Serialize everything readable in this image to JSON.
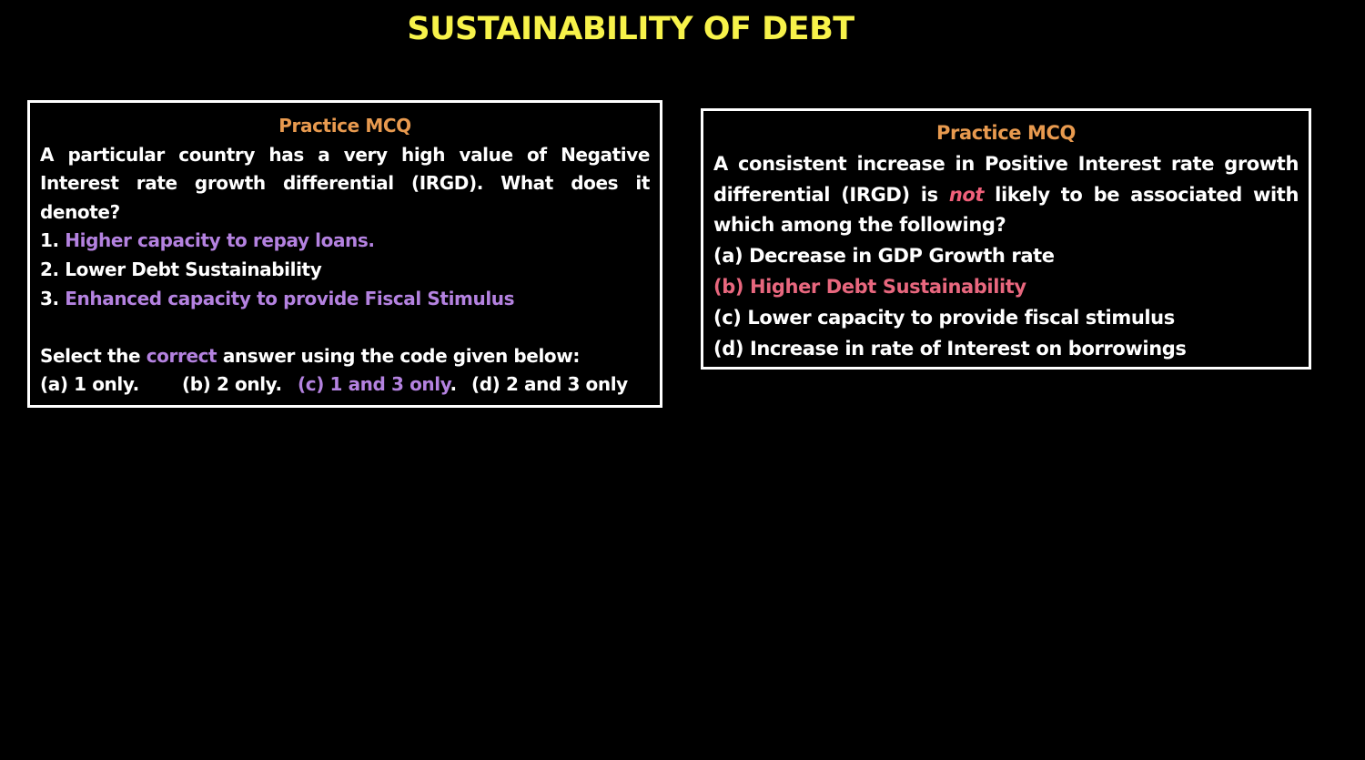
{
  "title": "SUSTAINABILITY OF DEBT",
  "left_card": {
    "heading": "Practice MCQ",
    "question": "A particular country has a very high value of Negative Interest rate growth differential (IRGD). What does it denote?",
    "statements": [
      {
        "number": "1.",
        "text": "Higher capacity to repay loans."
      },
      {
        "number": "2.",
        "text": "Lower Debt Sustainability"
      },
      {
        "number": "3.",
        "text": "Enhanced capacity to provide Fiscal Stimulus"
      }
    ],
    "instruction": {
      "before": "Select the",
      "highlight": "correct",
      "after": "answer using the code given below:"
    },
    "options": {
      "a": "(a) 1 only.",
      "b": "(b) 2 only.",
      "c": {
        "text": "(c) 1 and 3 only",
        "suffix": "."
      },
      "d": "(d) 2 and 3 only"
    }
  },
  "right_card": {
    "heading": "Practice MCQ",
    "question": {
      "before": "A consistent increase in Positive Interest rate growth differential (IRGD) is",
      "emphasis": "not",
      "after": "likely to be associated with which among the following?"
    },
    "options": [
      "(a) Decrease in GDP Growth rate",
      "(b) Higher Debt Sustainability",
      "(c) Lower capacity to provide fiscal stimulus",
      "(d) Increase in rate of Interest on borrowings"
    ]
  }
}
